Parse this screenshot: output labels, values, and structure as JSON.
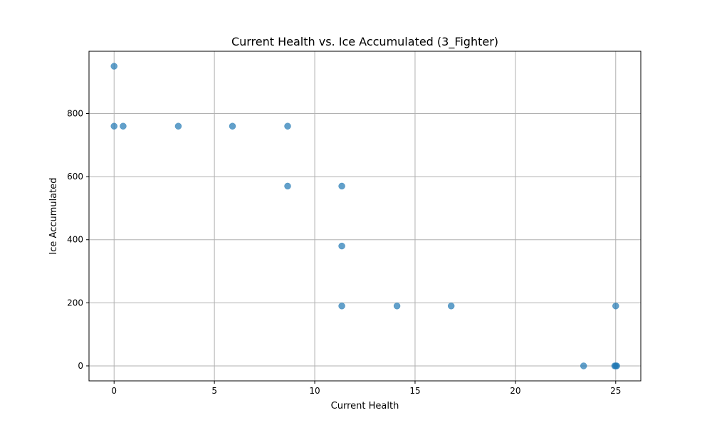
{
  "chart_data": {
    "type": "scatter",
    "title": "Current Health vs. Ice Accumulated (3_Fighter)",
    "xlabel": "Current Health",
    "ylabel": "Ice Accumulated",
    "xlim": [
      -1.25,
      26.25
    ],
    "ylim": [
      -47.5,
      997.5
    ],
    "xticks": [
      0,
      5,
      10,
      15,
      20,
      25
    ],
    "yticks": [
      0,
      200,
      400,
      600,
      800
    ],
    "grid": true,
    "marker_color": "#1f77b4",
    "marker_alpha": 0.7,
    "points": [
      {
        "x": 0,
        "y": 950
      },
      {
        "x": 0,
        "y": 760
      },
      {
        "x": 0.45,
        "y": 760
      },
      {
        "x": 3.2,
        "y": 760
      },
      {
        "x": 5.9,
        "y": 760
      },
      {
        "x": 8.65,
        "y": 760
      },
      {
        "x": 8.65,
        "y": 570
      },
      {
        "x": 11.35,
        "y": 570
      },
      {
        "x": 11.35,
        "y": 380
      },
      {
        "x": 11.35,
        "y": 190
      },
      {
        "x": 14.1,
        "y": 190
      },
      {
        "x": 16.8,
        "y": 190
      },
      {
        "x": 25,
        "y": 190
      },
      {
        "x": 23.4,
        "y": 0
      },
      {
        "x": 25,
        "y": 0
      },
      {
        "x": 24.95,
        "y": 0
      },
      {
        "x": 25.05,
        "y": 0
      }
    ]
  }
}
